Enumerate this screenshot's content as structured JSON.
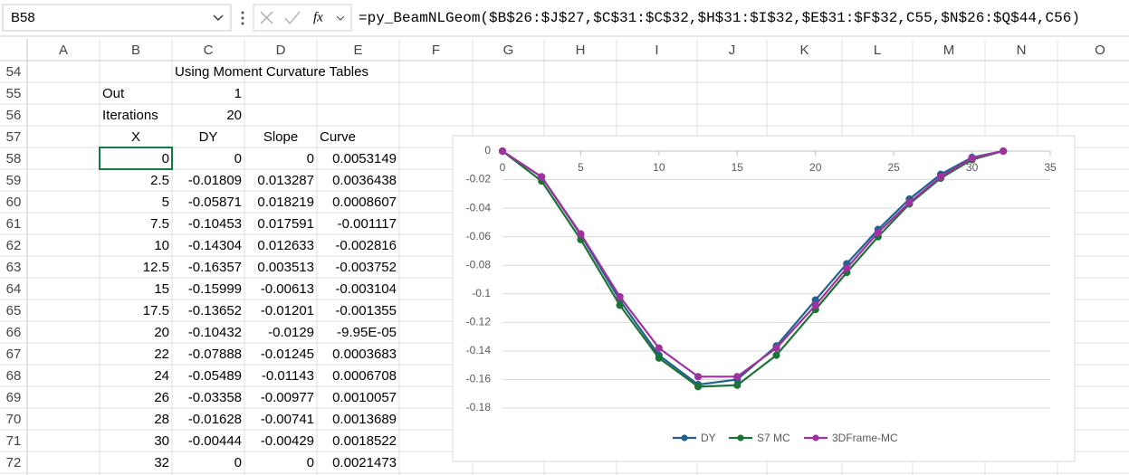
{
  "formula_bar": {
    "name_box": "B58",
    "function_label": "fx",
    "formula": "=py_BeamNLGeom($B$26:$J$27,$C$31:$C$32,$H$31:$I$32,$E$31:$F$32,C55,$N$26:$Q$44,C56)"
  },
  "sheet": {
    "columns": [
      "A",
      "B",
      "C",
      "D",
      "E",
      "F",
      "G",
      "H",
      "I",
      "J",
      "K",
      "L",
      "M",
      "N",
      "O"
    ],
    "rows": [
      {
        "number": 54,
        "cells": {
          "C": "Using Moment Curvature Tables"
        }
      },
      {
        "number": 55,
        "cells": {
          "B": "Out",
          "C": "1"
        }
      },
      {
        "number": 56,
        "cells": {
          "B": "Iterations",
          "C": "20"
        }
      },
      {
        "number": 57,
        "cells": {
          "B": "X",
          "C": "DY",
          "D": "Slope",
          "E": "Curve"
        }
      },
      {
        "number": 58,
        "cells": {
          "B": "0",
          "C": "0",
          "D": "0",
          "E": "0.0053149"
        }
      },
      {
        "number": 59,
        "cells": {
          "B": "2.5",
          "C": "-0.01809",
          "D": "0.013287",
          "E": "0.0036438"
        }
      },
      {
        "number": 60,
        "cells": {
          "B": "5",
          "C": "-0.05871",
          "D": "0.018219",
          "E": "0.0008607"
        }
      },
      {
        "number": 61,
        "cells": {
          "B": "7.5",
          "C": "-0.10453",
          "D": "0.017591",
          "E": "-0.001117"
        }
      },
      {
        "number": 62,
        "cells": {
          "B": "10",
          "C": "-0.14304",
          "D": "0.012633",
          "E": "-0.002816"
        }
      },
      {
        "number": 63,
        "cells": {
          "B": "12.5",
          "C": "-0.16357",
          "D": "0.003513",
          "E": "-0.003752"
        }
      },
      {
        "number": 64,
        "cells": {
          "B": "15",
          "C": "-0.15999",
          "D": "-0.00613",
          "E": "-0.003104"
        }
      },
      {
        "number": 65,
        "cells": {
          "B": "17.5",
          "C": "-0.13652",
          "D": "-0.01201",
          "E": "-0.001355"
        }
      },
      {
        "number": 66,
        "cells": {
          "B": "20",
          "C": "-0.10432",
          "D": "-0.0129",
          "E": "-9.95E-05"
        }
      },
      {
        "number": 67,
        "cells": {
          "B": "22",
          "C": "-0.07888",
          "D": "-0.01245",
          "E": "0.0003683"
        }
      },
      {
        "number": 68,
        "cells": {
          "B": "24",
          "C": "-0.05489",
          "D": "-0.01143",
          "E": "0.0006708"
        }
      },
      {
        "number": 69,
        "cells": {
          "B": "26",
          "C": "-0.03358",
          "D": "-0.00977",
          "E": "0.0010057"
        }
      },
      {
        "number": 70,
        "cells": {
          "B": "28",
          "C": "-0.01628",
          "D": "-0.00741",
          "E": "0.0013689"
        }
      },
      {
        "number": 71,
        "cells": {
          "B": "30",
          "C": "-0.00444",
          "D": "-0.00429",
          "E": "0.0018522"
        }
      },
      {
        "number": 72,
        "cells": {
          "B": "32",
          "C": "0",
          "D": "0",
          "E": "0.0021473"
        }
      }
    ]
  },
  "chart_data": {
    "type": "line",
    "x": [
      0,
      2.5,
      5,
      7.5,
      10,
      12.5,
      15,
      17.5,
      20,
      22,
      24,
      26,
      28,
      30,
      32
    ],
    "series": [
      {
        "name": "DY",
        "color": "#21618f",
        "values": [
          0,
          -0.01809,
          -0.05871,
          -0.10453,
          -0.14304,
          -0.16357,
          -0.15999,
          -0.13652,
          -0.10432,
          -0.07888,
          -0.05489,
          -0.03358,
          -0.01628,
          -0.00444,
          0
        ]
      },
      {
        "name": "S7 MC",
        "color": "#1d7336",
        "values": [
          0,
          -0.021,
          -0.062,
          -0.108,
          -0.145,
          -0.165,
          -0.164,
          -0.143,
          -0.111,
          -0.085,
          -0.06,
          -0.037,
          -0.019,
          -0.006,
          0
        ]
      },
      {
        "name": "3DFrame-MC",
        "color": "#a0329f",
        "values": [
          0,
          -0.018,
          -0.058,
          -0.102,
          -0.138,
          -0.158,
          -0.158,
          -0.138,
          -0.108,
          -0.082,
          -0.057,
          -0.036,
          -0.018,
          -0.005,
          0
        ]
      }
    ],
    "xlim": [
      0,
      35
    ],
    "xticks": [
      0,
      5,
      10,
      15,
      20,
      25,
      30,
      35
    ],
    "ylim": [
      -0.18,
      0
    ],
    "yticks": [
      0,
      -0.02,
      -0.04,
      -0.06,
      -0.08,
      -0.1,
      -0.12,
      -0.14,
      -0.16,
      -0.18
    ],
    "grid": true,
    "legend": "bottom"
  }
}
